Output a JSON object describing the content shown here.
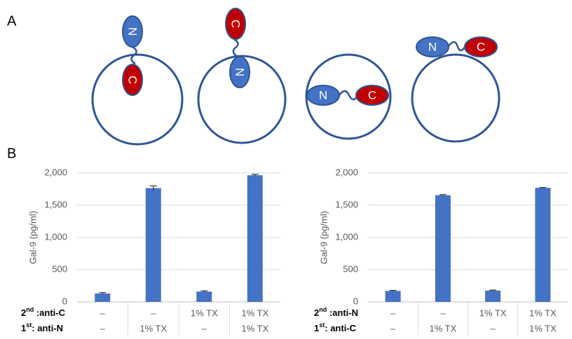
{
  "panel_a": {
    "label": "A",
    "cells": [
      {
        "domains": [
          {
            "label": "N",
            "color": "#4472c4"
          },
          {
            "label": "C",
            "color": "#c00000"
          }
        ]
      },
      {
        "domains": [
          {
            "label": "C",
            "color": "#c00000"
          },
          {
            "label": "N",
            "color": "#4472c4"
          }
        ]
      },
      {
        "domains": [
          {
            "label": "N",
            "color": "#4472c4"
          },
          {
            "label": "C",
            "color": "#c00000"
          }
        ]
      },
      {
        "domains": [
          {
            "label": "N",
            "color": "#4472c4"
          },
          {
            "label": "C",
            "color": "#c00000"
          }
        ]
      }
    ]
  },
  "panel_b": {
    "label": "B"
  },
  "chart_data": [
    {
      "type": "bar",
      "ylabel": "Gal-9 (pg/ml)",
      "color": "#4472c4",
      "values": [
        130,
        1765,
        160,
        1965
      ],
      "errors": [
        15,
        35,
        12,
        15
      ],
      "ylim": [
        0,
        2000
      ],
      "yticks": [
        0,
        500,
        {
          "value": 1000,
          "label": "1,000"
        },
        {
          "value": 1500,
          "label": "1,500"
        },
        {
          "value": 2000,
          "label": "2,000"
        }
      ],
      "grid": true,
      "rows": [
        {
          "ordinal": "2",
          "suffix": "nd",
          "text": " :anti-C",
          "cells": [
            "–",
            "–",
            "1% TX",
            "1% TX"
          ]
        },
        {
          "ordinal": "1",
          "suffix": "st",
          "text": ": anti-N",
          "cells": [
            "–",
            "1% TX",
            "–",
            "1% TX"
          ]
        }
      ]
    },
    {
      "type": "bar",
      "ylabel": "Gal-9 (pg/ml)",
      "color": "#4472c4",
      "values": [
        170,
        1655,
        175,
        1770
      ],
      "errors": [
        8,
        10,
        8,
        5
      ],
      "ylim": [
        0,
        2000
      ],
      "yticks": [
        0,
        500,
        {
          "value": 1000,
          "label": "1,000"
        },
        {
          "value": 1500,
          "label": "1,500"
        },
        {
          "value": 2000,
          "label": "2,000"
        }
      ],
      "grid": true,
      "rows": [
        {
          "ordinal": "2",
          "suffix": "nd",
          "text": " :anti-N",
          "cells": [
            "–",
            "–",
            "1% TX",
            "1% TX"
          ]
        },
        {
          "ordinal": "1",
          "suffix": "st",
          "text": ": anti-C",
          "cells": [
            "–",
            "1% TX",
            "–",
            "1% TX"
          ]
        }
      ]
    }
  ]
}
